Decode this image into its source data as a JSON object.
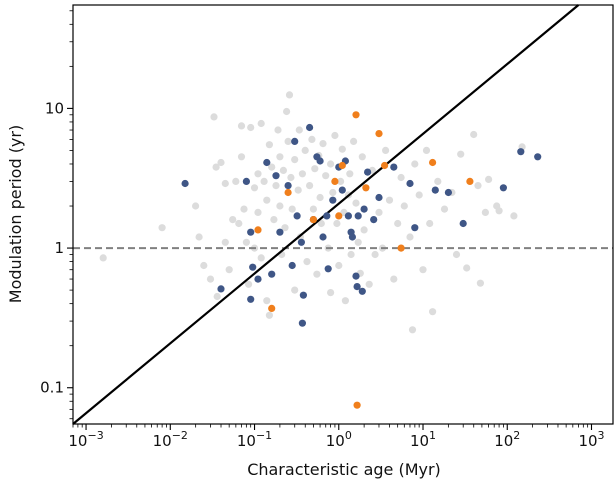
{
  "chart_data": {
    "type": "scatter",
    "xlabel": "Characteristic age (Myr)",
    "ylabel": "Modulation period (yr)",
    "x_scale": "log",
    "y_scale": "log",
    "xlim": [
      0.0007,
      1800
    ],
    "ylim": [
      0.055,
      55
    ],
    "x_ticks": [
      {
        "value": 0.001,
        "base": "10",
        "exp": "−3"
      },
      {
        "value": 0.01,
        "base": "10",
        "exp": "−2"
      },
      {
        "value": 0.1,
        "base": "10",
        "exp": "−1"
      },
      {
        "value": 1,
        "base": "10",
        "exp": "0"
      },
      {
        "value": 10,
        "base": "10",
        "exp": "1"
      },
      {
        "value": 100,
        "base": "10",
        "exp": "2"
      },
      {
        "value": 1000,
        "base": "10",
        "exp": "3"
      }
    ],
    "y_ticks": [
      {
        "value": 0.1,
        "label": "0.1"
      },
      {
        "value": 1,
        "label": "1"
      },
      {
        "value": 10,
        "label": "10"
      }
    ],
    "grid": false,
    "legend": "none",
    "reference_lines": [
      {
        "type": "horizontal",
        "y": 1,
        "style": "dashed",
        "color": "#808080"
      },
      {
        "type": "line",
        "points": [
          [
            0.0007,
            0.055
          ],
          [
            700,
            55
          ]
        ],
        "style": "solid",
        "color": "#000000"
      }
    ],
    "series": [
      {
        "color": "#3f5686",
        "points": [
          [
            0.015,
            2.9
          ],
          [
            0.08,
            3.0
          ],
          [
            0.09,
            1.3
          ],
          [
            0.095,
            0.73
          ],
          [
            0.04,
            0.51
          ],
          [
            0.09,
            0.43
          ],
          [
            0.11,
            0.6
          ],
          [
            0.14,
            4.1
          ],
          [
            0.16,
            0.65
          ],
          [
            0.18,
            3.3
          ],
          [
            0.2,
            1.3
          ],
          [
            0.25,
            2.8
          ],
          [
            0.28,
            0.75
          ],
          [
            0.3,
            5.8
          ],
          [
            0.32,
            1.7
          ],
          [
            0.36,
            1.1
          ],
          [
            0.37,
            0.29
          ],
          [
            0.38,
            0.46
          ],
          [
            0.45,
            7.3
          ],
          [
            0.5,
            1.6
          ],
          [
            0.55,
            4.5
          ],
          [
            0.6,
            4.2
          ],
          [
            0.65,
            1.2
          ],
          [
            0.72,
            1.7
          ],
          [
            0.75,
            0.71
          ],
          [
            0.85,
            2.2
          ],
          [
            1.0,
            3.8
          ],
          [
            1.1,
            2.6
          ],
          [
            1.2,
            4.2
          ],
          [
            1.3,
            1.7
          ],
          [
            1.4,
            1.3
          ],
          [
            1.45,
            1.2
          ],
          [
            1.6,
            0.63
          ],
          [
            1.65,
            0.53
          ],
          [
            1.7,
            1.7
          ],
          [
            1.9,
            0.49
          ],
          [
            2.0,
            1.9
          ],
          [
            2.2,
            3.5
          ],
          [
            2.6,
            1.6
          ],
          [
            3.0,
            2.3
          ],
          [
            4.5,
            3.8
          ],
          [
            7.0,
            2.9
          ],
          [
            8.0,
            1.4
          ],
          [
            14.0,
            2.6
          ],
          [
            20.0,
            2.5
          ],
          [
            30.0,
            1.5
          ],
          [
            90.0,
            2.7
          ],
          [
            145.0,
            4.9
          ],
          [
            230.0,
            4.5
          ]
        ]
      },
      {
        "color": "#f07f1c",
        "points": [
          [
            0.11,
            1.35
          ],
          [
            0.16,
            0.37
          ],
          [
            0.25,
            2.5
          ],
          [
            0.5,
            1.6
          ],
          [
            0.9,
            3.0
          ],
          [
            1.0,
            1.7
          ],
          [
            1.1,
            3.9
          ],
          [
            1.6,
            9.0
          ],
          [
            1.65,
            0.075
          ],
          [
            2.1,
            2.7
          ],
          [
            3.0,
            6.6
          ],
          [
            3.5,
            3.9
          ],
          [
            5.5,
            1.0
          ],
          [
            13.0,
            4.1
          ],
          [
            36.0,
            3.0
          ]
        ]
      },
      {
        "color": "#dcdcdc",
        "points": [
          [
            0.0016,
            0.85
          ],
          [
            0.008,
            1.4
          ],
          [
            0.02,
            2.0
          ],
          [
            0.022,
            1.2
          ],
          [
            0.025,
            0.75
          ],
          [
            0.03,
            0.6
          ],
          [
            0.033,
            8.7
          ],
          [
            0.035,
            3.8
          ],
          [
            0.036,
            0.45
          ],
          [
            0.04,
            4.1
          ],
          [
            0.045,
            2.9
          ],
          [
            0.045,
            1.1
          ],
          [
            0.05,
            0.7
          ],
          [
            0.055,
            1.6
          ],
          [
            0.06,
            3.0
          ],
          [
            0.065,
            1.5
          ],
          [
            0.07,
            7.5
          ],
          [
            0.07,
            4.5
          ],
          [
            0.075,
            1.9
          ],
          [
            0.08,
            1.1
          ],
          [
            0.085,
            0.55
          ],
          [
            0.09,
            7.3
          ],
          [
            0.1,
            2.7
          ],
          [
            0.1,
            1.0
          ],
          [
            0.11,
            3.4
          ],
          [
            0.11,
            1.8
          ],
          [
            0.12,
            7.8
          ],
          [
            0.12,
            0.85
          ],
          [
            0.13,
            3.0
          ],
          [
            0.14,
            2.2
          ],
          [
            0.14,
            0.42
          ],
          [
            0.15,
            5.5
          ],
          [
            0.15,
            0.33
          ],
          [
            0.16,
            3.8
          ],
          [
            0.17,
            1.6
          ],
          [
            0.18,
            2.8
          ],
          [
            0.19,
            7.0
          ],
          [
            0.2,
            4.5
          ],
          [
            0.2,
            2.0
          ],
          [
            0.21,
            0.9
          ],
          [
            0.22,
            3.6
          ],
          [
            0.23,
            1.4
          ],
          [
            0.24,
            9.5
          ],
          [
            0.25,
            5.8
          ],
          [
            0.26,
            12.5
          ],
          [
            0.27,
            3.2
          ],
          [
            0.28,
            1.9
          ],
          [
            0.3,
            4.3
          ],
          [
            0.3,
            0.5
          ],
          [
            0.33,
            2.6
          ],
          [
            0.34,
            7.0
          ],
          [
            0.35,
            1.2
          ],
          [
            0.37,
            3.4
          ],
          [
            0.4,
            5.0
          ],
          [
            0.42,
            0.8
          ],
          [
            0.45,
            2.8
          ],
          [
            0.48,
            6.0
          ],
          [
            0.5,
            1.9
          ],
          [
            0.52,
            3.7
          ],
          [
            0.55,
            0.65
          ],
          [
            0.58,
            4.6
          ],
          [
            0.6,
            2.3
          ],
          [
            0.62,
            1.5
          ],
          [
            0.65,
            5.6
          ],
          [
            0.7,
            3.3
          ],
          [
            0.75,
            1.0
          ],
          [
            0.8,
            4.0
          ],
          [
            0.8,
            0.48
          ],
          [
            0.85,
            2.5
          ],
          [
            0.9,
            6.4
          ],
          [
            0.95,
            1.5
          ],
          [
            1.0,
            0.75
          ],
          [
            1.05,
            3.0
          ],
          [
            1.1,
            5.1
          ],
          [
            1.15,
            1.8
          ],
          [
            1.2,
            0.42
          ],
          [
            1.3,
            2.4
          ],
          [
            1.35,
            3.4
          ],
          [
            1.4,
            0.9
          ],
          [
            1.5,
            5.8
          ],
          [
            1.6,
            2.1
          ],
          [
            1.7,
            1.1
          ],
          [
            1.8,
            0.66
          ],
          [
            1.9,
            4.5
          ],
          [
            2.0,
            1.35
          ],
          [
            2.1,
            2.7
          ],
          [
            2.3,
            0.55
          ],
          [
            2.5,
            3.6
          ],
          [
            2.7,
            0.9
          ],
          [
            3.0,
            1.8
          ],
          [
            3.3,
            1.0
          ],
          [
            3.6,
            5.0
          ],
          [
            4.0,
            2.2
          ],
          [
            4.5,
            0.6
          ],
          [
            5.0,
            1.5
          ],
          [
            5.5,
            3.2
          ],
          [
            6.0,
            2.0
          ],
          [
            7.0,
            1.2
          ],
          [
            7.5,
            0.26
          ],
          [
            8.0,
            4.0
          ],
          [
            9.0,
            2.4
          ],
          [
            10.0,
            0.7
          ],
          [
            11.0,
            5.0
          ],
          [
            12.0,
            1.5
          ],
          [
            13.0,
            0.35
          ],
          [
            15.0,
            3.0
          ],
          [
            18.0,
            1.9
          ],
          [
            22.0,
            2.5
          ],
          [
            25.0,
            0.9
          ],
          [
            28.0,
            4.7
          ],
          [
            33.0,
            0.72
          ],
          [
            40.0,
            6.5
          ],
          [
            45.0,
            2.8
          ],
          [
            48.0,
            0.56
          ],
          [
            55.0,
            1.8
          ],
          [
            60.0,
            3.1
          ],
          [
            75.0,
            2.0
          ],
          [
            80.0,
            1.85
          ],
          [
            120.0,
            1.7
          ],
          [
            150.0,
            5.3
          ]
        ]
      }
    ]
  }
}
